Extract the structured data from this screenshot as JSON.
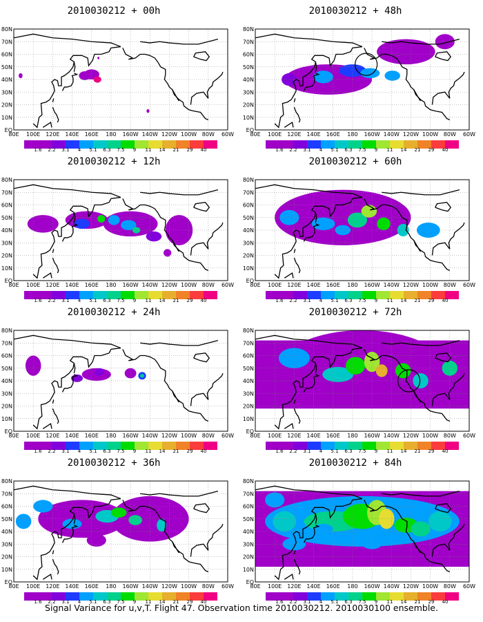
{
  "caption": "Signal Variance for u,v,T. Flight 47. Observation time 2010030212. 2010030100 ensemble.",
  "lon_labels": [
    "80E",
    "100E",
    "120E",
    "140E",
    "160E",
    "180",
    "160W",
    "140W",
    "120W",
    "100W",
    "80W",
    "60W"
  ],
  "lat_labels": [
    "80N",
    "70N",
    "60N",
    "50N",
    "40N",
    "30N",
    "20N",
    "10N",
    "EQ"
  ],
  "colorbar_labels": [
    "1.6",
    "2.2",
    "3.1",
    "4",
    "5.1",
    "6.3",
    "7.5",
    "9",
    "11",
    "14",
    "21",
    "29",
    "40"
  ],
  "colorbar_colors": [
    "#a000c8",
    "#8200dc",
    "#1e3cff",
    "#00a0ff",
    "#00c8c8",
    "#00d28c",
    "#00dc00",
    "#a0e632",
    "#e6dc32",
    "#e6af2d",
    "#f08228",
    "#fa3c3c",
    "#f00082"
  ],
  "panels": [
    {
      "title": "2010030212 + 00h",
      "level": 0,
      "circle": null
    },
    {
      "title": "2010030212 + 48h",
      "level": 4,
      "circle": {
        "lon": -166,
        "lat": 52
      }
    },
    {
      "title": "2010030212 + 12h",
      "level": 1,
      "circle": null
    },
    {
      "title": "2010030212 + 60h",
      "level": 5,
      "circle": null
    },
    {
      "title": "2010030212 + 24h",
      "level": 2,
      "circle": null
    },
    {
      "title": "2010030212 + 72h",
      "level": 6,
      "circle": {
        "lon": -122,
        "lat": 40
      }
    },
    {
      "title": "2010030212 + 36h",
      "level": 3,
      "circle": null
    },
    {
      "title": "2010030212 + 84h",
      "level": 7,
      "circle": null
    }
  ]
}
